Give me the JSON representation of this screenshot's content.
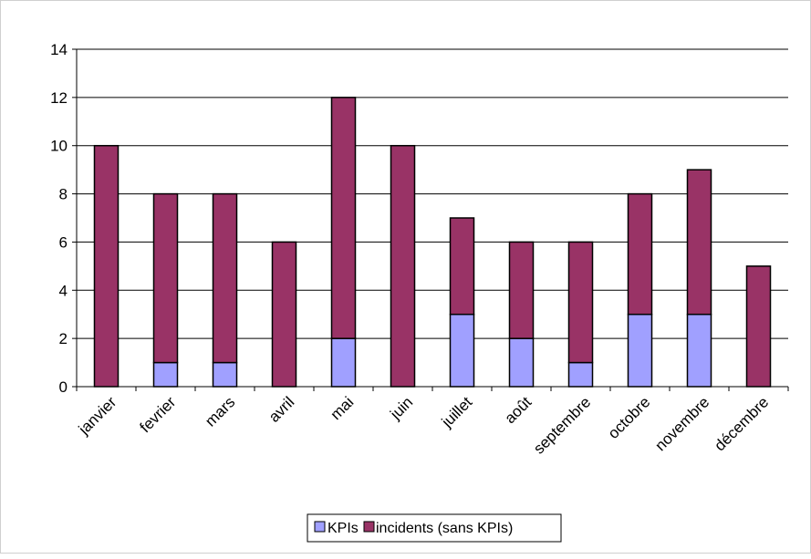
{
  "chart_data": {
    "type": "bar",
    "stacked": true,
    "categories": [
      "janvier",
      "fevrier",
      "mars",
      "avril",
      "mai",
      "juin",
      "juillet",
      "août",
      "septembre",
      "octobre",
      "novembre",
      "décembre"
    ],
    "series": [
      {
        "name": "KPIs",
        "color": "#a0a0ff",
        "values": [
          0,
          1,
          1,
          0,
          2,
          0,
          3,
          2,
          1,
          3,
          3,
          0
        ]
      },
      {
        "name": "incidents (sans KPIs)",
        "color": "#993366",
        "values": [
          10,
          7,
          7,
          6,
          10,
          10,
          4,
          4,
          5,
          5,
          6,
          5
        ]
      }
    ],
    "title": "",
    "xlabel": "",
    "ylabel": "",
    "ylim": [
      0,
      14
    ],
    "yticks": [
      0,
      2,
      4,
      6,
      8,
      10,
      12,
      14
    ],
    "grid": true,
    "legend_position": "bottom"
  }
}
